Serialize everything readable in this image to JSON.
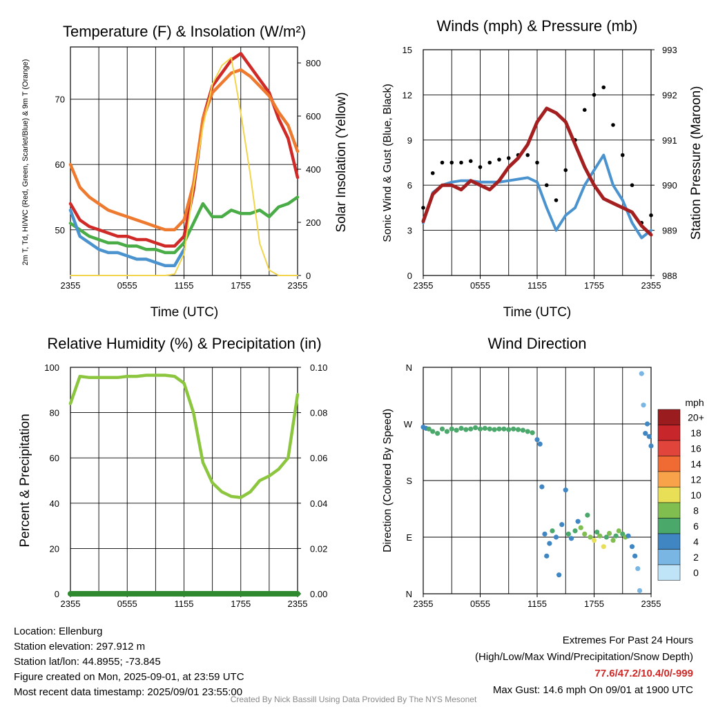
{
  "colors": {
    "temp": "#cf2a27",
    "dewpoint": "#4aac46",
    "heatindex": "#cf2a27",
    "temp9m": "#ee7a30",
    "solar": "#f2d54b",
    "wind": "#4a93cf",
    "gust": "#000000",
    "pressure": "#a41f20",
    "rh": "#8cc63f",
    "precip": "#2f8a2f",
    "extremes_text": "#cf2a27"
  },
  "xaxis": {
    "ticks": [
      "2355",
      "0555",
      "1155",
      "1755",
      "2355"
    ],
    "label": "Time (UTC)"
  },
  "legend": {
    "title": "mph",
    "labels": [
      "20+",
      "18",
      "16",
      "14",
      "12",
      "10",
      "8",
      "6",
      "4",
      "2",
      "0"
    ],
    "colors": [
      "#9b1c1f",
      "#c7272b",
      "#e1443a",
      "#f06a34",
      "#f8a24a",
      "#e9df57",
      "#7fbe4f",
      "#4aa86b",
      "#3f86c2",
      "#7ab6e3",
      "#bfe3f7"
    ]
  },
  "chart_data": [
    {
      "type": "line",
      "title": "Temperature (F) & Insolation (W/m²)",
      "xlabel": "Time (UTC)",
      "ylabel": "2m T, Td, HI/WC (Red, Green, Scarlet/Blue) & 9m T (Orange)",
      "ylabel_right": "Solar Insolation (Yellow)",
      "ylim": [
        43,
        78
      ],
      "ylim_right": [
        0,
        860
      ],
      "yticks": [
        50,
        60,
        70
      ],
      "yticks_right": [
        0,
        200,
        400,
        600,
        800
      ],
      "x_hours": [
        0,
        1,
        2,
        3,
        4,
        5,
        6,
        7,
        8,
        9,
        10,
        11,
        12,
        13,
        14,
        15,
        16,
        17,
        18,
        19,
        20,
        21,
        22,
        23,
        24
      ],
      "series": [
        {
          "name": "2m T",
          "axis": "left",
          "color": "#cf2a27",
          "values": [
            54,
            51.5,
            50.5,
            50,
            49.5,
            49,
            49,
            48.5,
            48.5,
            48,
            47.5,
            47.5,
            49,
            56,
            67,
            72,
            74,
            76,
            77,
            75,
            73,
            71,
            67,
            64,
            58
          ]
        },
        {
          "name": "Td",
          "axis": "left",
          "color": "#4aac46",
          "values": [
            51,
            50,
            49,
            48.5,
            48,
            48,
            47.5,
            47.5,
            47,
            47,
            46.5,
            46.5,
            48,
            51,
            54,
            52,
            52,
            53,
            52.5,
            52.5,
            53,
            52,
            53.5,
            54,
            55
          ]
        },
        {
          "name": "HI/WC",
          "axis": "left",
          "color": "#4a93cf",
          "values": [
            53,
            49,
            48,
            47,
            46.5,
            46.5,
            46,
            45.5,
            45.5,
            45,
            44.5,
            44.5,
            47
          ]
        },
        {
          "name": "9m T",
          "axis": "left",
          "color": "#ee7a30",
          "values": [
            60,
            56.5,
            55,
            54,
            53,
            52.5,
            52,
            51.5,
            51,
            50.5,
            50,
            50,
            51.5,
            57,
            67,
            71,
            72.5,
            74,
            74.5,
            73.5,
            72,
            70.5,
            68,
            66,
            62
          ]
        },
        {
          "name": "Solar",
          "axis": "right",
          "color": "#f2d54b",
          "values": [
            0,
            0,
            0,
            0,
            0,
            0,
            0,
            0,
            0,
            0,
            0,
            5,
            80,
            330,
            560,
            720,
            790,
            820,
            610,
            380,
            120,
            20,
            0,
            0,
            0
          ]
        }
      ]
    },
    {
      "type": "line",
      "title": "Winds (mph) & Pressure (mb)",
      "xlabel": "Time (UTC)",
      "ylabel": "Sonic Wind & Gust (Blue, Black)",
      "ylabel_right": "Station Pressure (Maroon)",
      "ylim": [
        0,
        15
      ],
      "ylim_right": [
        988,
        993
      ],
      "yticks": [
        0,
        3,
        6,
        9,
        12,
        15
      ],
      "yticks_right": [
        988,
        989,
        990,
        991,
        992,
        993
      ],
      "x_hours": [
        0,
        1,
        2,
        3,
        4,
        5,
        6,
        7,
        8,
        9,
        10,
        11,
        12,
        13,
        14,
        15,
        16,
        17,
        18,
        19,
        20,
        21,
        22,
        23,
        24
      ],
      "series": [
        {
          "name": "Sonic Wind",
          "axis": "left",
          "color": "#4a93cf",
          "values": [
            3.5,
            5.5,
            6,
            6.2,
            6.3,
            6.3,
            6.2,
            6.2,
            6.2,
            6.3,
            6.4,
            6.5,
            6.2,
            4.5,
            3,
            4,
            4.5,
            6,
            7,
            8,
            6,
            5,
            3.5,
            2.5,
            3
          ]
        },
        {
          "name": "Gust",
          "axis": "left",
          "color": "#000000",
          "values": [
            4.5,
            6.8,
            7.5,
            7.5,
            7.5,
            7.6,
            7.2,
            7.5,
            7.7,
            7.8,
            8,
            8,
            7.5,
            6,
            5,
            7,
            9,
            11,
            12,
            12.5,
            10,
            8,
            6,
            3.5,
            4
          ]
        },
        {
          "name": "Pressure",
          "axis": "right",
          "color": "#a41f20",
          "values": [
            989.2,
            989.8,
            990,
            990,
            989.9,
            990.1,
            990,
            989.9,
            990.1,
            990.4,
            990.6,
            990.9,
            991.4,
            991.7,
            991.6,
            991.4,
            990.9,
            990.4,
            990.0,
            989.7,
            989.6,
            989.5,
            989.4,
            989.1,
            988.9
          ]
        }
      ]
    },
    {
      "type": "line",
      "title": "Relative Humidity (%) & Precipitation (in)",
      "xlabel": "",
      "ylabel": "Percent & Precipitation",
      "ylim": [
        0,
        100
      ],
      "ylim_right": [
        0,
        0.1
      ],
      "yticks": [
        0,
        20,
        40,
        60,
        80,
        100
      ],
      "yticks_right": [
        "0.00",
        "0.02",
        "0.04",
        "0.06",
        "0.08",
        "0.10"
      ],
      "x_hours": [
        0,
        1,
        2,
        3,
        4,
        5,
        6,
        7,
        8,
        9,
        10,
        11,
        12,
        13,
        14,
        15,
        16,
        17,
        18,
        19,
        20,
        21,
        22,
        23,
        24
      ],
      "series": [
        {
          "name": "RH",
          "axis": "left",
          "color": "#8cc63f",
          "values": [
            84,
            96,
            95.5,
            95.5,
            95.5,
            95.5,
            96,
            96,
            96.5,
            96.5,
            96.5,
            96,
            93,
            80,
            58,
            49,
            45,
            43,
            42.5,
            45,
            50,
            52,
            55,
            60,
            88
          ]
        },
        {
          "name": "Precip",
          "axis": "right",
          "color": "#2f8a2f",
          "values": [
            0,
            0,
            0,
            0,
            0,
            0,
            0,
            0,
            0,
            0,
            0,
            0,
            0,
            0,
            0,
            0,
            0,
            0,
            0,
            0,
            0,
            0,
            0,
            0,
            0
          ]
        }
      ]
    },
    {
      "type": "scatter",
      "title": "Wind Direction",
      "xlabel": "",
      "ylabel": "Direction (Colored By Speed)",
      "yticks": [
        "N",
        "E",
        "S",
        "W",
        "N"
      ],
      "ylim": [
        0,
        360
      ],
      "points": [
        {
          "t": 0.0,
          "d": 265,
          "s": 4
        },
        {
          "t": 0.3,
          "d": 263,
          "s": 4
        },
        {
          "t": 0.6,
          "d": 262,
          "s": 5
        },
        {
          "t": 1.0,
          "d": 258,
          "s": 6
        },
        {
          "t": 1.5,
          "d": 255,
          "s": 6
        },
        {
          "t": 2.0,
          "d": 262,
          "s": 6
        },
        {
          "t": 2.5,
          "d": 258,
          "s": 6
        },
        {
          "t": 3.0,
          "d": 262,
          "s": 6
        },
        {
          "t": 3.5,
          "d": 260,
          "s": 6
        },
        {
          "t": 4.0,
          "d": 263,
          "s": 6
        },
        {
          "t": 4.5,
          "d": 261,
          "s": 6
        },
        {
          "t": 5.0,
          "d": 262,
          "s": 6
        },
        {
          "t": 5.5,
          "d": 264,
          "s": 6
        },
        {
          "t": 6.0,
          "d": 262,
          "s": 6
        },
        {
          "t": 6.5,
          "d": 263,
          "s": 6
        },
        {
          "t": 7.0,
          "d": 262,
          "s": 6
        },
        {
          "t": 7.5,
          "d": 261,
          "s": 6
        },
        {
          "t": 8.0,
          "d": 262,
          "s": 6
        },
        {
          "t": 8.5,
          "d": 262,
          "s": 6
        },
        {
          "t": 9.0,
          "d": 261,
          "s": 6
        },
        {
          "t": 9.5,
          "d": 262,
          "s": 6
        },
        {
          "t": 10.0,
          "d": 261,
          "s": 6
        },
        {
          "t": 10.5,
          "d": 260,
          "s": 6
        },
        {
          "t": 11.0,
          "d": 258,
          "s": 6
        },
        {
          "t": 11.5,
          "d": 256,
          "s": 5
        },
        {
          "t": 12.0,
          "d": 245,
          "s": 4
        },
        {
          "t": 12.3,
          "d": 238,
          "s": 4
        },
        {
          "t": 12.5,
          "d": 170,
          "s": 3
        },
        {
          "t": 12.8,
          "d": 95,
          "s": 4
        },
        {
          "t": 13.0,
          "d": 60,
          "s": 3
        },
        {
          "t": 13.3,
          "d": 80,
          "s": 4
        },
        {
          "t": 13.6,
          "d": 100,
          "s": 5
        },
        {
          "t": 14.0,
          "d": 90,
          "s": 4
        },
        {
          "t": 14.3,
          "d": 30,
          "s": 4
        },
        {
          "t": 14.6,
          "d": 110,
          "s": 4
        },
        {
          "t": 15.0,
          "d": 165,
          "s": 3
        },
        {
          "t": 15.3,
          "d": 95,
          "s": 6
        },
        {
          "t": 15.6,
          "d": 88,
          "s": 4
        },
        {
          "t": 16.0,
          "d": 100,
          "s": 6
        },
        {
          "t": 16.3,
          "d": 115,
          "s": 4
        },
        {
          "t": 16.6,
          "d": 105,
          "s": 8
        },
        {
          "t": 17.0,
          "d": 95,
          "s": 7
        },
        {
          "t": 17.3,
          "d": 125,
          "s": 6
        },
        {
          "t": 17.6,
          "d": 90,
          "s": 8
        },
        {
          "t": 18.0,
          "d": 85,
          "s": 10
        },
        {
          "t": 18.3,
          "d": 98,
          "s": 6
        },
        {
          "t": 18.6,
          "d": 92,
          "s": 7
        },
        {
          "t": 19.0,
          "d": 75,
          "s": 10
        },
        {
          "t": 19.3,
          "d": 90,
          "s": 6
        },
        {
          "t": 19.6,
          "d": 96,
          "s": 7
        },
        {
          "t": 20.0,
          "d": 85,
          "s": 8
        },
        {
          "t": 20.3,
          "d": 92,
          "s": 6
        },
        {
          "t": 20.6,
          "d": 100,
          "s": 8
        },
        {
          "t": 21.0,
          "d": 95,
          "s": 6
        },
        {
          "t": 21.3,
          "d": 90,
          "s": 7
        },
        {
          "t": 21.6,
          "d": 92,
          "s": 4
        },
        {
          "t": 22.0,
          "d": 75,
          "s": 3
        },
        {
          "t": 22.3,
          "d": 60,
          "s": 3
        },
        {
          "t": 22.6,
          "d": 40,
          "s": 2
        },
        {
          "t": 22.8,
          "d": 5,
          "s": 1
        },
        {
          "t": 23.0,
          "d": 350,
          "s": 1
        },
        {
          "t": 23.2,
          "d": 300,
          "s": 1
        },
        {
          "t": 23.4,
          "d": 255,
          "s": 3
        },
        {
          "t": 23.6,
          "d": 270,
          "s": 3
        },
        {
          "t": 23.8,
          "d": 250,
          "s": 3
        },
        {
          "t": 24.0,
          "d": 235,
          "s": 4
        }
      ]
    }
  ],
  "info": {
    "location": "Location: Ellenburg",
    "elevation": "Station elevation: 297.912 m",
    "latlon": "Station lat/lon: 44.8955; -73.845",
    "created": "Figure created on Mon, 2025-09-01, at 23:59 UTC",
    "recent": "Most recent data timestamp: 2025/09/01 23:55:00"
  },
  "extremes": {
    "title": "Extremes For Past 24 Hours",
    "subtitle": "(High/Low/Max Wind/Precipitation/Snow Depth)",
    "values": "77.6/47.2/10.4/0/-999",
    "gust": "Max Gust: 14.6 mph On 09/01 at 1900 UTC"
  },
  "credit": "Created By Nick Bassill Using Data Provided By The NYS Mesonet"
}
